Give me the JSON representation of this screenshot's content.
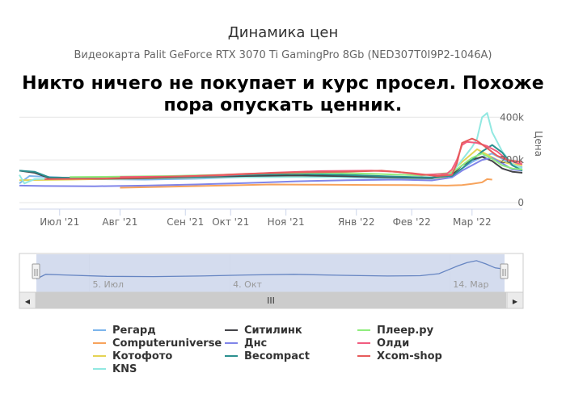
{
  "chart_data": {
    "type": "line",
    "title": "Динамика цен",
    "subtitle": "Видеокарта Palit GeForce RTX 3070 Ti GamingPro 8Gb (NED307T0I9P2-1046A)",
    "ylabel": "Цена",
    "ylim": [
      0,
      420000
    ],
    "yticks": [
      {
        "v": 0,
        "label": "0"
      },
      {
        "v": 200000,
        "label": "200k"
      },
      {
        "v": 400000,
        "label": "400k"
      }
    ],
    "xlim": [
      0,
      100
    ],
    "xticks": [
      {
        "x": 8,
        "label": "Июл '21"
      },
      {
        "x": 20,
        "label": "Авг '21"
      },
      {
        "x": 33,
        "label": "Сен '21"
      },
      {
        "x": 42,
        "label": "Окт '21"
      },
      {
        "x": 53,
        "label": "Ноя '21"
      },
      {
        "x": 67,
        "label": "Янв '22"
      },
      {
        "x": 78,
        "label": "Фев '22"
      },
      {
        "x": 90,
        "label": "Мар '22"
      }
    ],
    "series": [
      {
        "name": "Регард",
        "color": "#7cb5ec",
        "points": [
          [
            0,
            90000
          ],
          [
            2,
            125000
          ],
          [
            6,
            120000
          ],
          [
            15,
            110000
          ],
          [
            25,
            108000
          ],
          [
            35,
            112000
          ],
          [
            45,
            120000
          ],
          [
            55,
            125000
          ],
          [
            65,
            118000
          ],
          [
            75,
            112000
          ],
          [
            82,
            115000
          ],
          [
            86,
            130000
          ],
          [
            88,
            160000
          ],
          [
            90,
            190000
          ],
          [
            92,
            215000
          ],
          [
            94,
            230000
          ],
          [
            96,
            205000
          ],
          [
            98,
            175000
          ],
          [
            100,
            165000
          ]
        ]
      },
      {
        "name": "Computeruniverse",
        "color": "#f7a35c",
        "points": [
          [
            20,
            70000
          ],
          [
            30,
            75000
          ],
          [
            40,
            80000
          ],
          [
            50,
            85000
          ],
          [
            60,
            84000
          ],
          [
            70,
            83000
          ],
          [
            78,
            82000
          ],
          [
            85,
            80000
          ],
          [
            88,
            82000
          ],
          [
            90,
            88000
          ],
          [
            92,
            95000
          ],
          [
            93,
            110000
          ],
          [
            94,
            108000
          ]
        ]
      },
      {
        "name": "Котофото",
        "color": "#e4d354",
        "points": [
          [
            0,
            105000
          ],
          [
            10,
            108000
          ],
          [
            20,
            112000
          ],
          [
            30,
            115000
          ],
          [
            40,
            118000
          ],
          [
            50,
            125000
          ],
          [
            60,
            122000
          ],
          [
            70,
            118000
          ],
          [
            80,
            112000
          ],
          [
            85,
            120000
          ],
          [
            87,
            170000
          ],
          [
            89,
            210000
          ],
          [
            91,
            250000
          ],
          [
            93,
            225000
          ],
          [
            95,
            200000
          ],
          [
            97,
            185000
          ],
          [
            100,
            175000
          ]
        ]
      },
      {
        "name": "KNS",
        "color": "#91e8e1",
        "points": [
          [
            0,
            130000
          ],
          [
            1,
            90000
          ],
          [
            3,
            110000
          ],
          [
            10,
            115000
          ],
          [
            25,
            115000
          ],
          [
            40,
            118000
          ],
          [
            55,
            120000
          ],
          [
            70,
            118000
          ],
          [
            82,
            112000
          ],
          [
            86,
            140000
          ],
          [
            88,
            200000
          ],
          [
            90,
            260000
          ],
          [
            91,
            300000
          ],
          [
            92,
            400000
          ],
          [
            93,
            420000
          ],
          [
            94,
            330000
          ],
          [
            96,
            240000
          ],
          [
            98,
            180000
          ],
          [
            100,
            160000
          ]
        ]
      },
      {
        "name": "Ситилинк",
        "color": "#434348",
        "points": [
          [
            0,
            150000
          ],
          [
            3,
            140000
          ],
          [
            6,
            115000
          ],
          [
            15,
            112000
          ],
          [
            25,
            115000
          ],
          [
            35,
            120000
          ],
          [
            45,
            125000
          ],
          [
            55,
            128000
          ],
          [
            65,
            124000
          ],
          [
            75,
            118000
          ],
          [
            82,
            115000
          ],
          [
            86,
            130000
          ],
          [
            88,
            175000
          ],
          [
            90,
            200000
          ],
          [
            92,
            215000
          ],
          [
            94,
            195000
          ],
          [
            96,
            160000
          ],
          [
            98,
            145000
          ],
          [
            100,
            140000
          ]
        ]
      },
      {
        "name": "Днс",
        "color": "#8085e9",
        "points": [
          [
            0,
            80000
          ],
          [
            5,
            78000
          ],
          [
            15,
            77000
          ],
          [
            25,
            80000
          ],
          [
            35,
            85000
          ],
          [
            45,
            92000
          ],
          [
            55,
            100000
          ],
          [
            65,
            105000
          ],
          [
            75,
            108000
          ],
          [
            82,
            104000
          ],
          [
            86,
            118000
          ],
          [
            88,
            150000
          ],
          [
            90,
            175000
          ],
          [
            92,
            200000
          ],
          [
            94,
            210000
          ],
          [
            96,
            185000
          ],
          [
            98,
            155000
          ],
          [
            100,
            150000
          ]
        ]
      },
      {
        "name": "Becompact",
        "color": "#2b908f",
        "points": [
          [
            0,
            150000
          ],
          [
            3,
            145000
          ],
          [
            6,
            118000
          ],
          [
            15,
            115000
          ],
          [
            25,
            118000
          ],
          [
            35,
            122000
          ],
          [
            45,
            130000
          ],
          [
            55,
            135000
          ],
          [
            65,
            130000
          ],
          [
            75,
            122000
          ],
          [
            82,
            118000
          ],
          [
            86,
            125000
          ],
          [
            88,
            160000
          ],
          [
            90,
            200000
          ],
          [
            92,
            240000
          ],
          [
            94,
            270000
          ],
          [
            96,
            235000
          ],
          [
            98,
            175000
          ],
          [
            100,
            150000
          ]
        ]
      },
      {
        "name": "Плеер.ру",
        "color": "#90ed7d",
        "points": [
          [
            10,
            120000
          ],
          [
            20,
            122000
          ],
          [
            30,
            125000
          ],
          [
            40,
            130000
          ],
          [
            50,
            138000
          ],
          [
            60,
            140000
          ],
          [
            70,
            135000
          ],
          [
            80,
            128000
          ],
          [
            86,
            140000
          ],
          [
            88,
            175000
          ],
          [
            90,
            210000
          ],
          [
            92,
            230000
          ],
          [
            94,
            205000
          ],
          [
            96,
            175000
          ],
          [
            98,
            160000
          ],
          [
            100,
            155000
          ]
        ]
      },
      {
        "name": "Олди",
        "color": "#f15c80",
        "points": [
          [
            20,
            120000
          ],
          [
            30,
            122000
          ],
          [
            40,
            128000
          ],
          [
            50,
            140000
          ],
          [
            60,
            148000
          ],
          [
            70,
            150000
          ],
          [
            75,
            145000
          ],
          [
            80,
            130000
          ],
          [
            85,
            135000
          ],
          [
            86,
            155000
          ],
          [
            87,
            200000
          ],
          [
            88,
            270000
          ],
          [
            89,
            285000
          ],
          [
            91,
            280000
          ],
          [
            93,
            265000
          ],
          [
            95,
            240000
          ],
          [
            97,
            200000
          ],
          [
            99,
            185000
          ],
          [
            100,
            180000
          ]
        ]
      },
      {
        "name": "Xcom-shop",
        "color": "#e75b5b",
        "points": [
          [
            5,
            110000
          ],
          [
            15,
            112000
          ],
          [
            25,
            118000
          ],
          [
            35,
            125000
          ],
          [
            45,
            135000
          ],
          [
            55,
            142000
          ],
          [
            65,
            145000
          ],
          [
            72,
            150000
          ],
          [
            78,
            138000
          ],
          [
            83,
            125000
          ],
          [
            86,
            130000
          ],
          [
            87,
            185000
          ],
          [
            88,
            280000
          ],
          [
            90,
            300000
          ],
          [
            91,
            290000
          ],
          [
            93,
            255000
          ],
          [
            95,
            220000
          ],
          [
            97,
            200000
          ],
          [
            100,
            190000
          ]
        ]
      }
    ]
  },
  "meme_text": "Никто ничего не покупает и курс просел. Похоже пора опускать ценник.",
  "navigator": {
    "labels": [
      {
        "x": 12,
        "label": "5. Июл"
      },
      {
        "x": 42,
        "label": "4. Окт"
      },
      {
        "x": 89,
        "label": "14. Мар"
      }
    ],
    "scroll_label": "III",
    "left_arrow": "◀",
    "right_arrow": "▶",
    "handle_glyph": "||",
    "accent_fill": "#ccd6eb",
    "line_color": "#6685c2"
  },
  "legend_columns": [
    [
      "Регард",
      "Computeruniverse",
      "Котофото",
      "KNS"
    ],
    [
      "Ситилинк",
      "Днс",
      "Becompact"
    ],
    [
      "Плеер.ру",
      "Олди",
      "Xcom-shop"
    ]
  ]
}
